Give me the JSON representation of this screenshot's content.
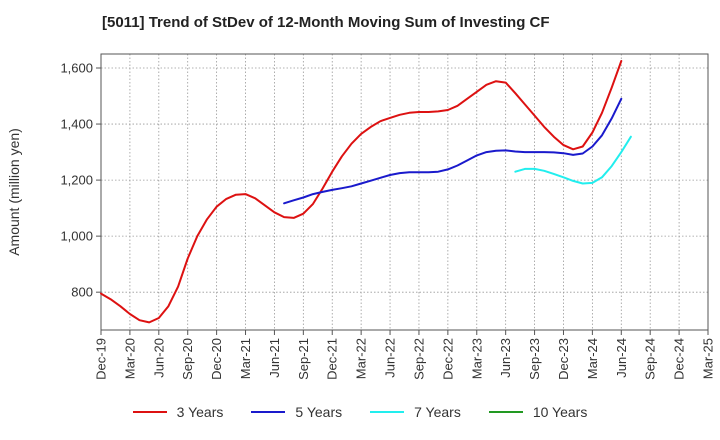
{
  "chart_data": {
    "type": "line",
    "title": "[5011]  Trend of StDev of 12-Month Moving Sum of Investing CF",
    "ylabel": "Amount (million yen)",
    "xlabel": "",
    "ylim": [
      665,
      1650
    ],
    "yticks": [
      800,
      1000,
      1200,
      1400,
      1600
    ],
    "ytick_labels": [
      "800",
      "1,000",
      "1,200",
      "1,400",
      "1,600"
    ],
    "x_tick_labels": [
      "Dec-19",
      "Mar-20",
      "Jun-20",
      "Sep-20",
      "Dec-20",
      "Mar-21",
      "Jun-21",
      "Sep-21",
      "Dec-21",
      "Mar-22",
      "Jun-22",
      "Sep-22",
      "Dec-22",
      "Mar-23",
      "Jun-23",
      "Sep-23",
      "Dec-23",
      "Mar-24",
      "Jun-24",
      "Sep-24",
      "Dec-24",
      "Mar-25"
    ],
    "grid": true,
    "legend_position": "bottom",
    "series": [
      {
        "name": "3 Years",
        "color": "#dd1111",
        "start_index": 0,
        "values": [
          795,
          775,
          750,
          722,
          700,
          692,
          708,
          750,
          820,
          920,
          1000,
          1060,
          1105,
          1133,
          1148,
          1150,
          1135,
          1110,
          1085,
          1068,
          1065,
          1080,
          1115,
          1170,
          1230,
          1285,
          1330,
          1365,
          1390,
          1410,
          1422,
          1433,
          1440,
          1443,
          1443,
          1445,
          1450,
          1465,
          1490,
          1515,
          1540,
          1553,
          1548,
          1510,
          1470,
          1430,
          1390,
          1355,
          1325,
          1310,
          1320,
          1370,
          1440,
          1530,
          1625
        ]
      },
      {
        "name": "5 Years",
        "color": "#1a1acc",
        "start_index": 19,
        "values": [
          1117,
          1128,
          1138,
          1150,
          1158,
          1165,
          1171,
          1178,
          1188,
          1198,
          1208,
          1218,
          1225,
          1228,
          1228,
          1228,
          1230,
          1238,
          1252,
          1270,
          1288,
          1300,
          1305,
          1306,
          1302,
          1300,
          1300,
          1300,
          1299,
          1296,
          1290,
          1295,
          1320,
          1360,
          1420,
          1490
        ]
      },
      {
        "name": "7 Years",
        "color": "#22eeee",
        "start_index": 43,
        "values": [
          1230,
          1240,
          1240,
          1233,
          1222,
          1210,
          1197,
          1188,
          1190,
          1210,
          1250,
          1300,
          1355
        ]
      },
      {
        "name": "10 Years",
        "color": "#229922",
        "start_index": 0,
        "values": []
      }
    ]
  }
}
